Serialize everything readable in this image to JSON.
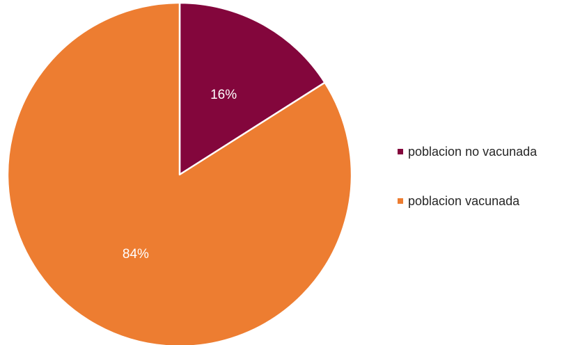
{
  "chart_data": {
    "type": "pie",
    "title": "",
    "categories": [
      "poblacion no vacunada",
      "poblacion vacunada"
    ],
    "values": [
      16,
      84
    ],
    "data_labels": [
      "16%",
      "84%"
    ],
    "colors": [
      "#83063c",
      "#ed7d31"
    ],
    "start_angle": "12 o'clock",
    "direction": "clockwise",
    "legend_position": "right"
  }
}
